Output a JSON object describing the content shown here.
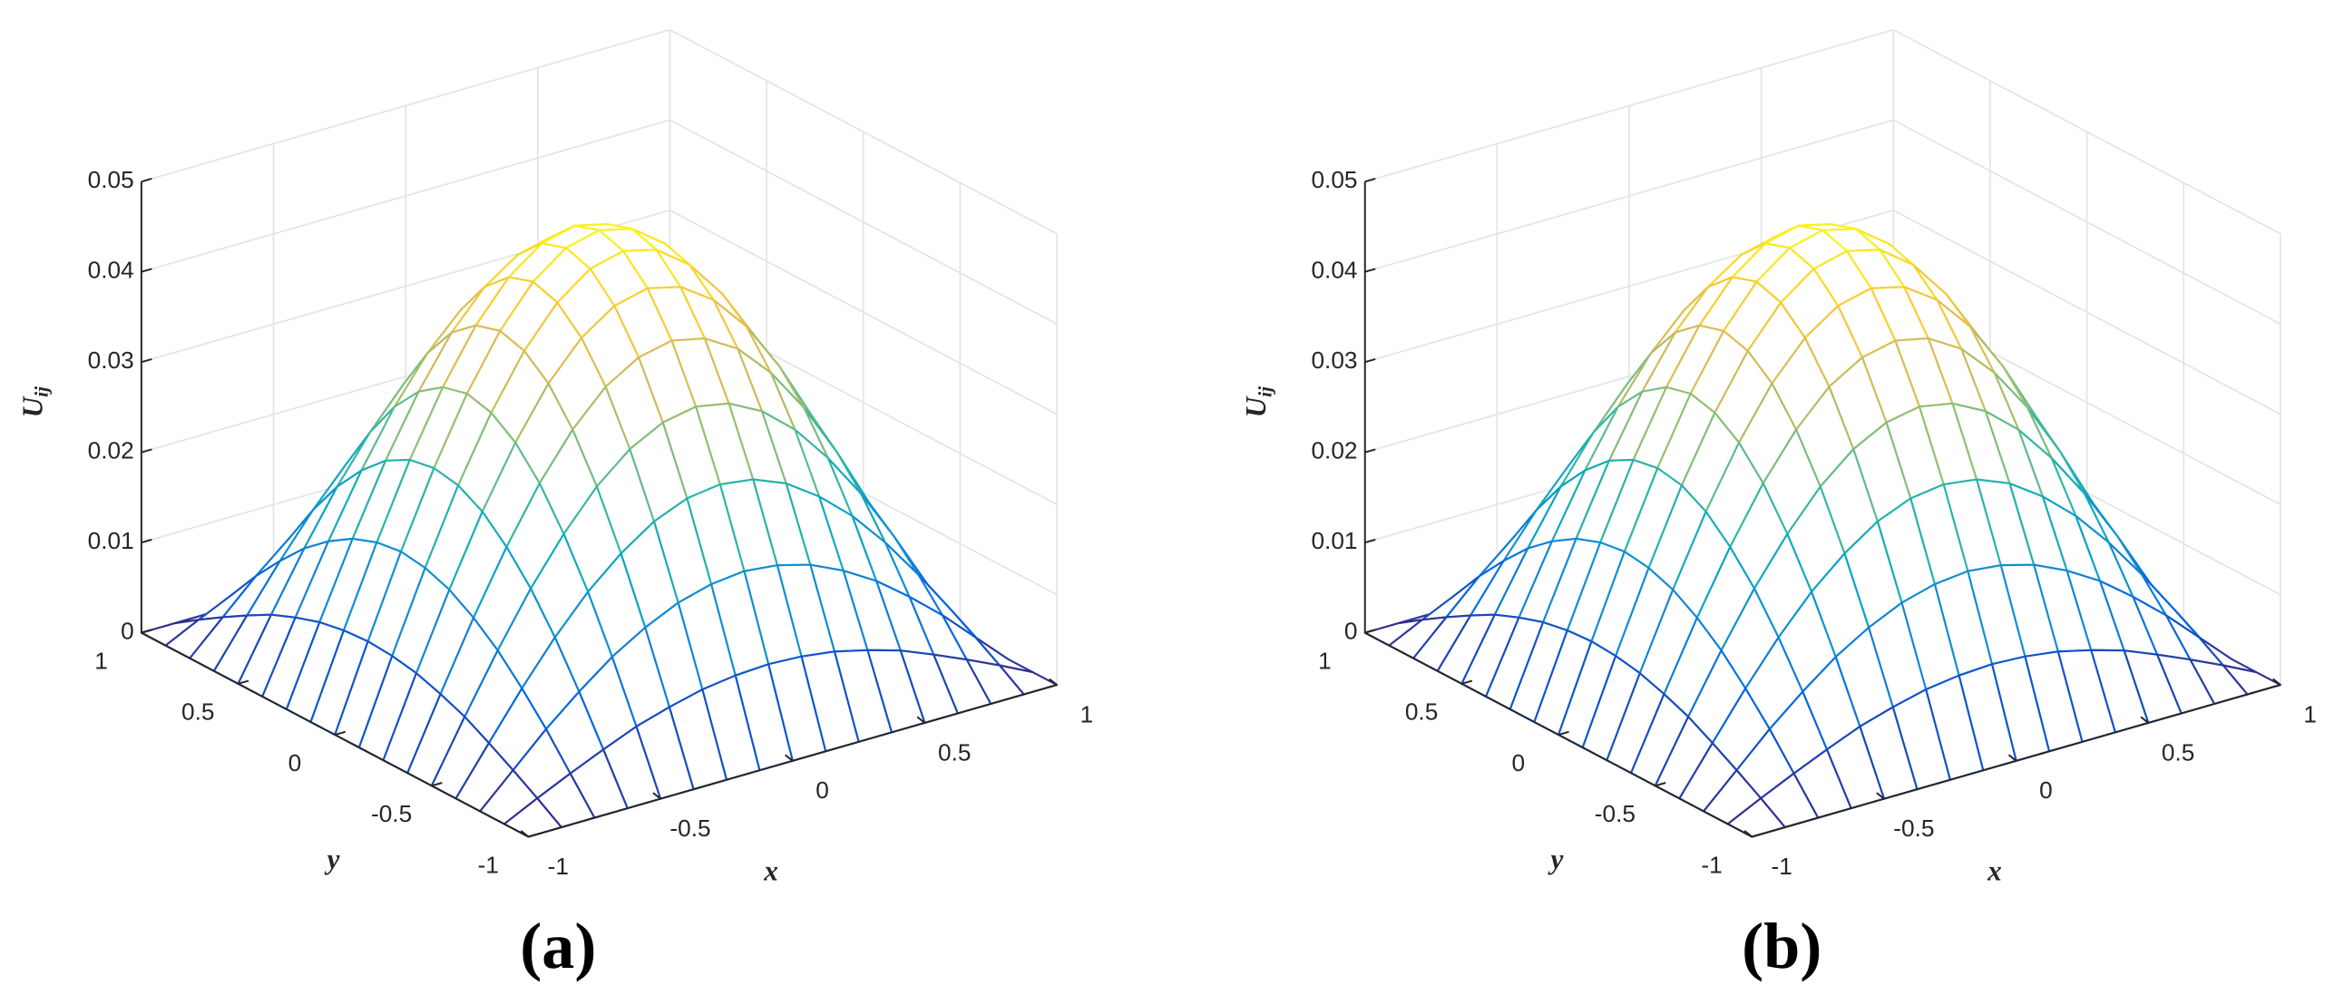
{
  "chart_data": [
    {
      "type": "surface",
      "label": "(a)",
      "xlabel": "x",
      "ylabel": "y",
      "zlabel": "Uij",
      "colormap": [
        "#352a87",
        "#0363e1",
        "#1485d4",
        "#06a7c6",
        "#38b99e",
        "#92bf73",
        "#d9ba56",
        "#fcce2e",
        "#f9fb0e"
      ],
      "grid": true,
      "xlim": [
        -1,
        1
      ],
      "ylim": [
        -1,
        1
      ],
      "zlim": [
        0,
        0.05
      ],
      "xticks": [
        -1,
        -0.5,
        0,
        0.5,
        1
      ],
      "yticks": [
        -1,
        -0.5,
        0,
        0.5,
        1
      ],
      "zticks": [
        0,
        0.01,
        0.02,
        0.03,
        0.04,
        0.05
      ],
      "x": [
        -1,
        -0.875,
        -0.75,
        -0.625,
        -0.5,
        -0.375,
        -0.25,
        -0.125,
        0,
        0.125,
        0.25,
        0.375,
        0.5,
        0.625,
        0.75,
        0.875,
        1
      ],
      "y": [
        -1,
        -0.875,
        -0.75,
        -0.625,
        -0.5,
        -0.375,
        -0.25,
        -0.125,
        0,
        0.125,
        0.25,
        0.375,
        0.5,
        0.625,
        0.75,
        0.875,
        1
      ],
      "z": [
        [
          0,
          0,
          0,
          0,
          0,
          0,
          0,
          0,
          0,
          0,
          0,
          0,
          0,
          0,
          0,
          0,
          0
        ],
        [
          0,
          0.0018,
          0.0035,
          0.0051,
          0.0066,
          0.0077,
          0.0086,
          0.0091,
          0.0093,
          0.0091,
          0.0086,
          0.0077,
          0.0066,
          0.0051,
          0.0035,
          0.0018,
          0
        ],
        [
          0,
          0.0035,
          0.007,
          0.0101,
          0.0129,
          0.0151,
          0.0168,
          0.0178,
          0.0182,
          0.0178,
          0.0168,
          0.0151,
          0.0129,
          0.0101,
          0.007,
          0.0035,
          0
        ],
        [
          0,
          0.0051,
          0.0101,
          0.0147,
          0.0187,
          0.0219,
          0.0244,
          0.0259,
          0.0264,
          0.0259,
          0.0244,
          0.0219,
          0.0187,
          0.0147,
          0.0101,
          0.0051,
          0
        ],
        [
          0,
          0.0066,
          0.0129,
          0.0187,
          0.0237,
          0.0279,
          0.031,
          0.0329,
          0.0336,
          0.0329,
          0.031,
          0.0279,
          0.0237,
          0.0187,
          0.0129,
          0.0066,
          0
        ],
        [
          0,
          0.0077,
          0.0151,
          0.0219,
          0.0279,
          0.0328,
          0.0365,
          0.0387,
          0.0395,
          0.0387,
          0.0365,
          0.0328,
          0.0279,
          0.0219,
          0.0151,
          0.0077,
          0
        ],
        [
          0,
          0.0086,
          0.0168,
          0.0244,
          0.031,
          0.0365,
          0.0405,
          0.043,
          0.0439,
          0.043,
          0.0405,
          0.0365,
          0.031,
          0.0244,
          0.0168,
          0.0086,
          0
        ],
        [
          0,
          0.0091,
          0.0178,
          0.0259,
          0.0329,
          0.0387,
          0.043,
          0.0457,
          0.0466,
          0.0457,
          0.043,
          0.0387,
          0.0329,
          0.0259,
          0.0178,
          0.0091,
          0
        ],
        [
          0,
          0.0093,
          0.0182,
          0.0264,
          0.0336,
          0.0395,
          0.0439,
          0.0466,
          0.0475,
          0.0466,
          0.0439,
          0.0395,
          0.0336,
          0.0264,
          0.0182,
          0.0093,
          0
        ],
        [
          0,
          0.0091,
          0.0178,
          0.0259,
          0.0329,
          0.0387,
          0.043,
          0.0457,
          0.0466,
          0.0457,
          0.043,
          0.0387,
          0.0329,
          0.0259,
          0.0178,
          0.0091,
          0
        ],
        [
          0,
          0.0086,
          0.0168,
          0.0244,
          0.031,
          0.0365,
          0.0405,
          0.043,
          0.0439,
          0.043,
          0.0405,
          0.0365,
          0.031,
          0.0244,
          0.0168,
          0.0086,
          0
        ],
        [
          0,
          0.0077,
          0.0151,
          0.0219,
          0.0279,
          0.0328,
          0.0365,
          0.0387,
          0.0395,
          0.0387,
          0.0365,
          0.0328,
          0.0279,
          0.0219,
          0.0151,
          0.0077,
          0
        ],
        [
          0,
          0.0066,
          0.0129,
          0.0187,
          0.0237,
          0.0279,
          0.031,
          0.0329,
          0.0336,
          0.0329,
          0.031,
          0.0279,
          0.0237,
          0.0187,
          0.0129,
          0.0066,
          0
        ],
        [
          0,
          0.0051,
          0.0101,
          0.0147,
          0.0187,
          0.0219,
          0.0244,
          0.0259,
          0.0264,
          0.0259,
          0.0244,
          0.0219,
          0.0187,
          0.0147,
          0.0101,
          0.0051,
          0
        ],
        [
          0,
          0.0035,
          0.007,
          0.0101,
          0.0129,
          0.0151,
          0.0168,
          0.0178,
          0.0182,
          0.0178,
          0.0168,
          0.0151,
          0.0129,
          0.0101,
          0.007,
          0.0035,
          0
        ],
        [
          0,
          0.0018,
          0.0035,
          0.0051,
          0.0066,
          0.0077,
          0.0086,
          0.0091,
          0.0093,
          0.0091,
          0.0086,
          0.0077,
          0.0066,
          0.0051,
          0.0035,
          0.0018,
          0
        ],
        [
          0,
          0,
          0,
          0,
          0,
          0,
          0,
          0,
          0,
          0,
          0,
          0,
          0,
          0,
          0,
          0,
          0
        ]
      ]
    },
    {
      "type": "surface",
      "label": "(b)",
      "xlabel": "x",
      "ylabel": "y",
      "zlabel": "Uij",
      "colormap": [
        "#352a87",
        "#0363e1",
        "#1485d4",
        "#06a7c6",
        "#38b99e",
        "#92bf73",
        "#d9ba56",
        "#fcce2e",
        "#f9fb0e"
      ],
      "grid": true,
      "xlim": [
        -1,
        1
      ],
      "ylim": [
        -1,
        1
      ],
      "zlim": [
        0,
        0.05
      ],
      "xticks": [
        -1,
        -0.5,
        0,
        0.5,
        1
      ],
      "yticks": [
        -1,
        -0.5,
        0,
        0.5,
        1
      ],
      "zticks": [
        0,
        0.01,
        0.02,
        0.03,
        0.04,
        0.05
      ],
      "x": [
        -1,
        -0.875,
        -0.75,
        -0.625,
        -0.5,
        -0.375,
        -0.25,
        -0.125,
        0,
        0.125,
        0.25,
        0.375,
        0.5,
        0.625,
        0.75,
        0.875,
        1
      ],
      "y": [
        -1,
        -0.875,
        -0.75,
        -0.625,
        -0.5,
        -0.375,
        -0.25,
        -0.125,
        0,
        0.125,
        0.25,
        0.375,
        0.5,
        0.625,
        0.75,
        0.875,
        1
      ],
      "z": [
        [
          0,
          0,
          0,
          0,
          0,
          0,
          0,
          0,
          0,
          0,
          0,
          0,
          0,
          0,
          0,
          0,
          0
        ],
        [
          0,
          0.0018,
          0.0035,
          0.0051,
          0.0066,
          0.0077,
          0.0086,
          0.0091,
          0.0093,
          0.0091,
          0.0086,
          0.0077,
          0.0066,
          0.0051,
          0.0035,
          0.0018,
          0
        ],
        [
          0,
          0.0035,
          0.007,
          0.0101,
          0.0129,
          0.0151,
          0.0168,
          0.0178,
          0.0182,
          0.0178,
          0.0168,
          0.0151,
          0.0129,
          0.0101,
          0.007,
          0.0035,
          0
        ],
        [
          0,
          0.0051,
          0.0101,
          0.0147,
          0.0187,
          0.0219,
          0.0244,
          0.0259,
          0.0264,
          0.0259,
          0.0244,
          0.0219,
          0.0187,
          0.0147,
          0.0101,
          0.0051,
          0
        ],
        [
          0,
          0.0066,
          0.0129,
          0.0187,
          0.0237,
          0.0279,
          0.031,
          0.0329,
          0.0336,
          0.0329,
          0.031,
          0.0279,
          0.0237,
          0.0187,
          0.0129,
          0.0066,
          0
        ],
        [
          0,
          0.0077,
          0.0151,
          0.0219,
          0.0279,
          0.0328,
          0.0365,
          0.0387,
          0.0395,
          0.0387,
          0.0365,
          0.0328,
          0.0279,
          0.0219,
          0.0151,
          0.0077,
          0
        ],
        [
          0,
          0.0086,
          0.0168,
          0.0244,
          0.031,
          0.0365,
          0.0405,
          0.043,
          0.0439,
          0.043,
          0.0405,
          0.0365,
          0.031,
          0.0244,
          0.0168,
          0.0086,
          0
        ],
        [
          0,
          0.0091,
          0.0178,
          0.0259,
          0.0329,
          0.0387,
          0.043,
          0.0457,
          0.0466,
          0.0457,
          0.043,
          0.0387,
          0.0329,
          0.0259,
          0.0178,
          0.0091,
          0
        ],
        [
          0,
          0.0093,
          0.0182,
          0.0264,
          0.0336,
          0.0395,
          0.0439,
          0.0466,
          0.0475,
          0.0466,
          0.0439,
          0.0395,
          0.0336,
          0.0264,
          0.0182,
          0.0093,
          0
        ],
        [
          0,
          0.0091,
          0.0178,
          0.0259,
          0.0329,
          0.0387,
          0.043,
          0.0457,
          0.0466,
          0.0457,
          0.043,
          0.0387,
          0.0329,
          0.0259,
          0.0178,
          0.0091,
          0
        ],
        [
          0,
          0.0086,
          0.0168,
          0.0244,
          0.031,
          0.0365,
          0.0405,
          0.043,
          0.0439,
          0.043,
          0.0405,
          0.0365,
          0.031,
          0.0244,
          0.0168,
          0.0086,
          0
        ],
        [
          0,
          0.0077,
          0.0151,
          0.0219,
          0.0279,
          0.0328,
          0.0365,
          0.0387,
          0.0395,
          0.0387,
          0.0365,
          0.0328,
          0.0279,
          0.0219,
          0.0151,
          0.0077,
          0
        ],
        [
          0,
          0.0066,
          0.0129,
          0.0187,
          0.0237,
          0.0279,
          0.031,
          0.0329,
          0.0336,
          0.0329,
          0.031,
          0.0279,
          0.0237,
          0.0187,
          0.0129,
          0.0066,
          0
        ],
        [
          0,
          0.0051,
          0.0101,
          0.0147,
          0.0187,
          0.0219,
          0.0244,
          0.0259,
          0.0264,
          0.0259,
          0.0244,
          0.0219,
          0.0187,
          0.0147,
          0.0101,
          0.0051,
          0
        ],
        [
          0,
          0.0035,
          0.007,
          0.0101,
          0.0129,
          0.0151,
          0.0168,
          0.0178,
          0.0182,
          0.0178,
          0.0168,
          0.0151,
          0.0129,
          0.0101,
          0.007,
          0.0035,
          0
        ],
        [
          0,
          0.0018,
          0.0035,
          0.0051,
          0.0066,
          0.0077,
          0.0086,
          0.0091,
          0.0093,
          0.0091,
          0.0086,
          0.0077,
          0.0066,
          0.0051,
          0.0035,
          0.0018,
          0
        ],
        [
          0,
          0,
          0,
          0,
          0,
          0,
          0,
          0,
          0,
          0,
          0,
          0,
          0,
          0,
          0,
          0,
          0
        ]
      ]
    }
  ]
}
